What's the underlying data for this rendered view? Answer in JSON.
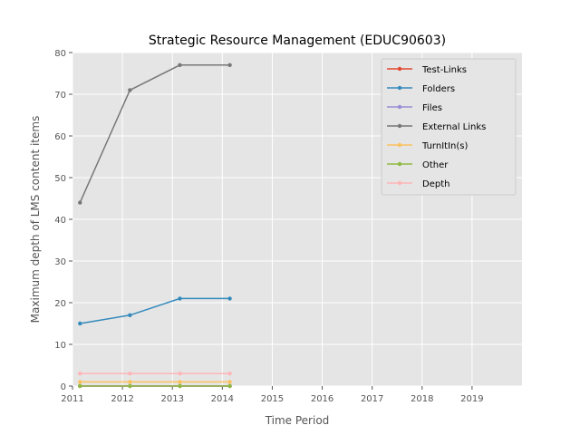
{
  "chart_data": {
    "type": "line",
    "title": "Strategic Resource Management (EDUC90603)",
    "xlabel": "Time Period",
    "ylabel": "Maximum depth of LMS content items",
    "xlim": [
      2011,
      2020
    ],
    "ylim": [
      0,
      80
    ],
    "x_ticks": [
      "2011",
      "2012",
      "2013",
      "2014",
      "2015",
      "2016",
      "2017",
      "2018",
      "2019"
    ],
    "y_ticks": [
      "0",
      "10",
      "20",
      "30",
      "40",
      "50",
      "60",
      "70",
      "80"
    ],
    "grid": true,
    "legend_position": "top-right",
    "x": [
      2011.15,
      2012.15,
      2013.15,
      2014.15
    ],
    "series": [
      {
        "name": "Test-Links",
        "color": "#E24A33",
        "values": [
          0,
          0,
          0,
          0
        ]
      },
      {
        "name": "Folders",
        "color": "#348ABD",
        "values": [
          15,
          17,
          21,
          21
        ]
      },
      {
        "name": "Files",
        "color": "#988ED5",
        "values": [
          0,
          0,
          0,
          0
        ]
      },
      {
        "name": "External Links",
        "color": "#777777",
        "values": [
          44,
          71,
          77,
          77
        ]
      },
      {
        "name": "TurnItIn(s)",
        "color": "#FBC15E",
        "values": [
          1,
          1,
          1,
          1
        ]
      },
      {
        "name": "Other",
        "color": "#8EBA42",
        "values": [
          0,
          0,
          0,
          0
        ]
      },
      {
        "name": "Depth",
        "color": "#FFB5B8",
        "values": [
          3,
          3,
          3,
          3
        ]
      }
    ]
  }
}
